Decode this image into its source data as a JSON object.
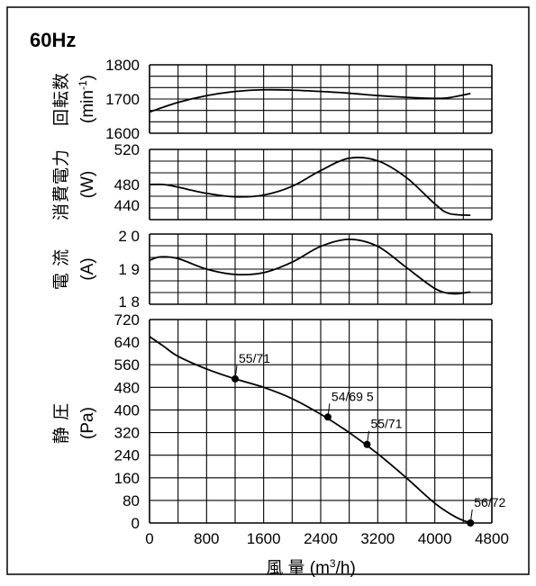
{
  "frequency_label": "60Hz",
  "xlabel_prefix": "風 量 (m",
  "xlabel_sup": "3",
  "xlabel_suffix": "/h)",
  "x_ticks": [
    "0",
    "800",
    "1600",
    "2400",
    "3200",
    "4000",
    "4800"
  ],
  "chart_data": [
    {
      "type": "line",
      "panel": "speed",
      "ylabel_jp": "回転数",
      "ylabel_unit_base": "(min",
      "ylabel_unit_sup": "-1",
      "ylabel_unit_end": ")",
      "ylim": [
        1600,
        1800
      ],
      "y_ticks": [
        "1800",
        "1700",
        "1600"
      ],
      "xlim": [
        0,
        4800
      ],
      "series": [
        {
          "x": [
            0,
            400,
            800,
            1200,
            1600,
            2000,
            2400,
            2800,
            3200,
            3600,
            4000,
            4200,
            4500
          ],
          "values": [
            1662,
            1690,
            1710,
            1722,
            1727,
            1726,
            1722,
            1717,
            1710,
            1705,
            1702,
            1704,
            1716
          ]
        }
      ]
    },
    {
      "type": "line",
      "panel": "power",
      "ylabel_jp": "消費電力",
      "ylabel_unit": "(W)",
      "ylim": [
        440,
        520
      ],
      "y_ticks": [
        "520",
        "480",
        "440"
      ],
      "xlim": [
        0,
        4800
      ],
      "series": [
        {
          "x": [
            0,
            200,
            400,
            800,
            1200,
            1600,
            2000,
            2400,
            2800,
            3200,
            3600,
            4000,
            4200,
            4500
          ],
          "values": [
            480,
            480,
            477,
            470,
            466,
            468,
            478,
            496,
            510,
            507,
            488,
            458,
            447,
            445
          ]
        }
      ]
    },
    {
      "type": "line",
      "panel": "current",
      "ylabel_jp": "電 流",
      "ylabel_unit": "(A)",
      "ylim": [
        1.8,
        2.0
      ],
      "y_ticks": [
        "2 0",
        "1 9",
        "1 8"
      ],
      "xlim": [
        0,
        4800
      ],
      "series": [
        {
          "x": [
            0,
            150,
            400,
            800,
            1200,
            1600,
            2000,
            2400,
            2800,
            3200,
            3600,
            4000,
            4250,
            4500
          ],
          "values": [
            1.925,
            1.935,
            1.93,
            1.9,
            1.885,
            1.89,
            1.92,
            1.965,
            1.985,
            1.965,
            1.905,
            1.845,
            1.83,
            1.835
          ]
        }
      ]
    },
    {
      "type": "line",
      "panel": "static_pressure",
      "ylabel_jp": "静 圧",
      "ylabel_unit": "(Pa)",
      "ylim": [
        0,
        720
      ],
      "y_ticks": [
        "720",
        "640",
        "560",
        "480",
        "400",
        "320",
        "240",
        "160",
        "80",
        "0"
      ],
      "xlim": [
        0,
        4800
      ],
      "series": [
        {
          "x": [
            0,
            200,
            400,
            800,
            1200,
            1600,
            2000,
            2400,
            2800,
            3200,
            3600,
            4000,
            4300,
            4500
          ],
          "values": [
            660,
            625,
            590,
            545,
            510,
            480,
            440,
            385,
            320,
            245,
            160,
            70,
            20,
            0
          ]
        }
      ],
      "points": [
        {
          "x": 1200,
          "y": 510,
          "label": "55/71"
        },
        {
          "x": 2500,
          "y": 375,
          "label": "54/69 5"
        },
        {
          "x": 3050,
          "y": 278,
          "label": "55/71"
        },
        {
          "x": 4500,
          "y": 0,
          "label": "56/72"
        }
      ]
    }
  ]
}
